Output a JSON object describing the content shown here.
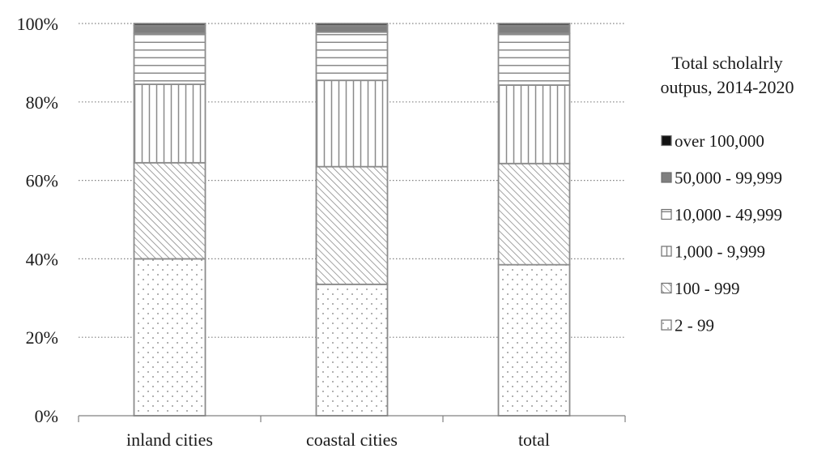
{
  "chart_data": {
    "type": "bar",
    "stacked": true,
    "normalized": true,
    "categories": [
      "inland cities",
      "coastal cities",
      "total"
    ],
    "series": [
      {
        "name": "2 - 99",
        "values": [
          40,
          33.5,
          38.5
        ],
        "pattern": "dots"
      },
      {
        "name": "100 - 999",
        "values": [
          24.5,
          30,
          25.8
        ],
        "pattern": "diagonal"
      },
      {
        "name": "1,000 - 9,999",
        "values": [
          20,
          22,
          20
        ],
        "pattern": "vertical"
      },
      {
        "name": "10,000 - 49,999",
        "values": [
          13,
          12.3,
          13.2
        ],
        "pattern": "horizontal"
      },
      {
        "name": "50,000 - 99,999",
        "values": [
          2,
          1.7,
          2
        ],
        "pattern": "grey"
      },
      {
        "name": "over 100,000",
        "values": [
          0.5,
          0.5,
          0.5
        ],
        "pattern": "black"
      }
    ],
    "legend_order": [
      "over 100,000",
      "50,000 - 99,999",
      "10,000 - 49,999",
      "1,000 - 9,999",
      "100 - 999",
      "2 - 99"
    ],
    "legend_title_lines": [
      "Total scholalrly",
      "outpus, 2014-2020"
    ],
    "ylim": [
      0,
      100
    ],
    "yticks": [
      0,
      20,
      40,
      60,
      80,
      100
    ],
    "ytick_labels": [
      "0%",
      "20%",
      "40%",
      "60%",
      "80%",
      "100%"
    ],
    "grid": "horizontal dotted",
    "legend_position": "right",
    "colors": {
      "outline": "#8c8c8c",
      "grey": "#7f7f7f",
      "black": "#111111",
      "pattern": "#8a8a8a"
    }
  }
}
